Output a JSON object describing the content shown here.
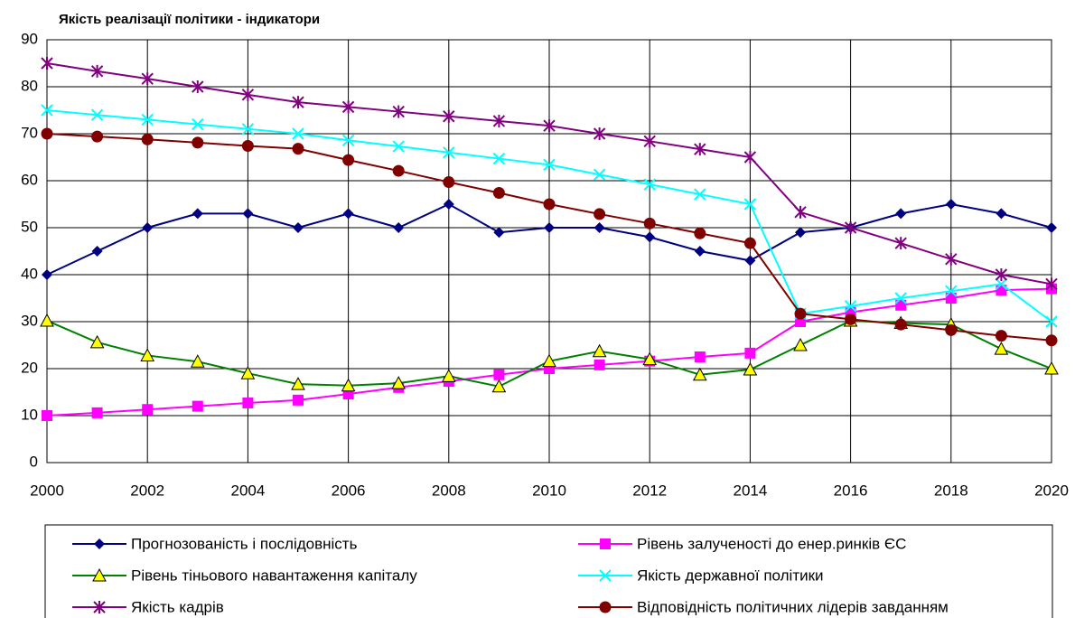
{
  "chart_data": {
    "type": "line",
    "title": "Якість реалізації політики - індикатори",
    "x": [
      2000,
      2001,
      2002,
      2003,
      2004,
      2005,
      2006,
      2007,
      2008,
      2009,
      2010,
      2011,
      2012,
      2013,
      2014,
      2015,
      2016,
      2017,
      2018,
      2019,
      2020
    ],
    "xlim": [
      2000,
      2020
    ],
    "xticks": [
      2000,
      2002,
      2004,
      2006,
      2008,
      2010,
      2012,
      2014,
      2016,
      2018,
      2020
    ],
    "ylim": [
      0,
      90
    ],
    "yticks": [
      0,
      10,
      20,
      30,
      40,
      50,
      60,
      70,
      80,
      90
    ],
    "grid": true,
    "legend": "bottom",
    "series": [
      {
        "name": "Прогнозованість і послідовність",
        "color": "#000080",
        "marker": "diamond",
        "values": [
          40,
          45,
          50,
          53,
          53,
          50,
          53,
          50,
          55,
          49,
          50,
          50,
          48,
          45,
          43,
          49,
          50,
          53,
          55,
          53,
          50
        ]
      },
      {
        "name": "Рівень залученості до енер.ринків ЄС",
        "color": "#ff00ff",
        "marker": "square",
        "values": [
          10,
          10.6,
          11.3,
          12,
          12.7,
          13.3,
          14.6,
          16,
          17.3,
          18.7,
          20,
          20.8,
          21.6,
          22.5,
          23.3,
          30,
          32,
          33.5,
          35,
          36.7,
          37
        ]
      },
      {
        "name": "Рівень тіньового навантаження капіталу",
        "color": "#008000",
        "marker": "triangle",
        "values": [
          30.2,
          25.6,
          22.8,
          21.5,
          19,
          16.7,
          16.4,
          16.9,
          18.4,
          16.2,
          21.6,
          23.7,
          22,
          18.7,
          19.8,
          25,
          30.2,
          29.7,
          29.4,
          24.2,
          20
        ]
      },
      {
        "name": "Якість державної політики",
        "color": "#00ffff",
        "marker": "x",
        "values": [
          75,
          74,
          73,
          72,
          71,
          70,
          68.6,
          67.3,
          66,
          64.7,
          63.4,
          61.3,
          59.2,
          57.1,
          55,
          31.7,
          33.3,
          35,
          36.5,
          38,
          30
        ]
      },
      {
        "name": "Якість кадрів",
        "color": "#800080",
        "marker": "star",
        "values": [
          85,
          83.3,
          81.7,
          80,
          78.3,
          76.7,
          75.7,
          74.7,
          73.7,
          72.7,
          71.7,
          70,
          68.4,
          66.7,
          65,
          53.3,
          50,
          46.7,
          43.3,
          40,
          38
        ]
      },
      {
        "name": "Відповідність політичних лідерів завданням",
        "color": "#800000",
        "marker": "circle",
        "values": [
          70,
          69.4,
          68.8,
          68.1,
          67.4,
          66.8,
          64.4,
          62.1,
          59.7,
          57.4,
          55,
          52.9,
          50.9,
          48.8,
          46.7,
          31.7,
          30.5,
          29.4,
          28.2,
          27,
          26
        ]
      }
    ]
  }
}
